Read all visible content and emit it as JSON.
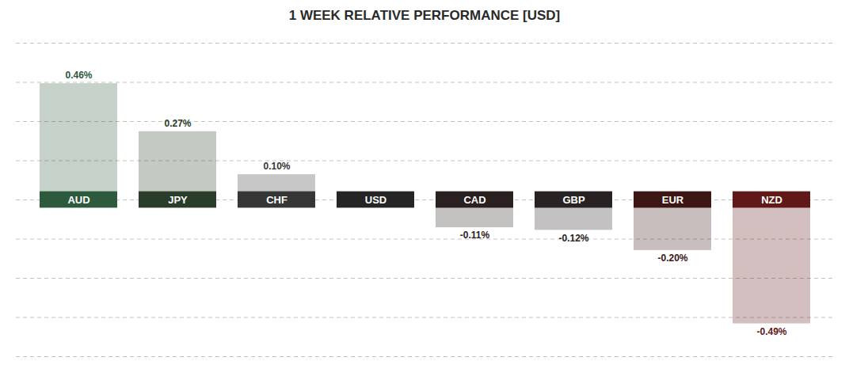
{
  "chart_data": {
    "type": "bar",
    "title": "1 WEEK RELATIVE PERFORMANCE  [USD]",
    "categories": [
      "AUD",
      "JPY",
      "CHF",
      "USD",
      "CAD",
      "GBP",
      "EUR",
      "NZD"
    ],
    "values": [
      0.46,
      0.27,
      0.1,
      0.0,
      -0.11,
      -0.12,
      -0.2,
      -0.49
    ],
    "value_labels": [
      "0.46%",
      "0.27%",
      "0.10%",
      null,
      "-0.11%",
      "-0.12%",
      "-0.20%",
      "-0.49%"
    ],
    "colors": [
      "#2d5a3d",
      "#2a3d2a",
      "#363636",
      "#252525",
      "#2a2020",
      "#282222",
      "#3d1515",
      "#601818"
    ],
    "ylim": [
      -0.62,
      0.62
    ],
    "yticks": [
      -0.62,
      -0.465,
      -0.31,
      -0.155,
      0,
      0.155,
      0.31,
      0.465,
      0.62
    ],
    "grid": true,
    "data_labels": true,
    "tick_labels": "x"
  }
}
